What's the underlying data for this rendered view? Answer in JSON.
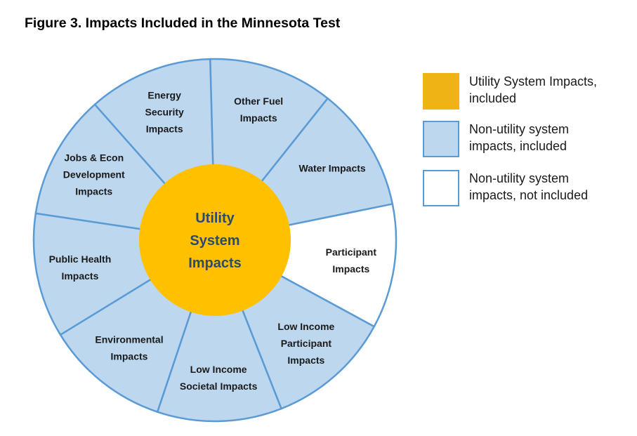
{
  "figure": {
    "title": "Figure 3. Impacts Included in the Minnesota Test"
  },
  "colors": {
    "included_fill": "#bdd7ee",
    "not_included_fill": "#ffffff",
    "segment_stroke": "#5b9bd5",
    "center_fill": "#ffc000",
    "center_text": "#2c4a6b",
    "swatch_utility": "#f0b316"
  },
  "wheel": {
    "center_label": [
      "Utility",
      "System",
      "Impacts"
    ],
    "segments": [
      {
        "lines": [
          "Other Fuel",
          "Impacts"
        ],
        "included": true
      },
      {
        "lines": [
          "Water Impacts"
        ],
        "included": true
      },
      {
        "lines": [
          "Participant",
          "Impacts"
        ],
        "included": false
      },
      {
        "lines": [
          "Low Income",
          "Participant",
          "Impacts"
        ],
        "included": true
      },
      {
        "lines": [
          "Low Income",
          "Societal Impacts"
        ],
        "included": true
      },
      {
        "lines": [
          "Environmental",
          "Impacts"
        ],
        "included": true
      },
      {
        "lines": [
          "Public Health",
          "Impacts"
        ],
        "included": true
      },
      {
        "lines": [
          "Jobs & Econ",
          "Development",
          "Impacts"
        ],
        "included": true
      },
      {
        "lines": [
          "Energy",
          "Security",
          "Impacts"
        ],
        "included": true
      }
    ]
  },
  "legend": {
    "items": [
      {
        "text_lines": [
          "Utility System Impacts,",
          "included"
        ],
        "swatch": "utility"
      },
      {
        "text_lines": [
          "Non-utility system",
          "impacts, included"
        ],
        "swatch": "included"
      },
      {
        "text_lines": [
          "Non-utility system",
          "impacts, not included"
        ],
        "swatch": "not_included"
      }
    ]
  }
}
